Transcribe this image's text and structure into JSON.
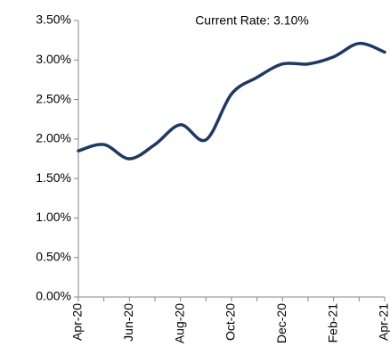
{
  "chart_data": {
    "type": "line",
    "annotation": "Current Rate: 3.10%",
    "categories": [
      "Apr-20",
      null,
      "Jun-20",
      null,
      "Aug-20",
      null,
      "Oct-20",
      null,
      "Dec-20",
      null,
      "Feb-21",
      null,
      "Apr-21"
    ],
    "series": [
      {
        "color": "#1f3864",
        "values": [
          1.85,
          1.93,
          1.75,
          1.93,
          2.18,
          1.99,
          2.57,
          2.78,
          2.95,
          2.95,
          3.04,
          3.21,
          3.1
        ]
      }
    ],
    "ylim": [
      0,
      3.5
    ],
    "yticks": [
      {
        "value": 0,
        "label": "0.00%"
      },
      {
        "value": 0.5,
        "label": "0.50%"
      },
      {
        "value": 1,
        "label": "1.00%"
      },
      {
        "value": 1.5,
        "label": "1.50%"
      },
      {
        "value": 2,
        "label": "2.00%"
      },
      {
        "value": 2.5,
        "label": "2.50%"
      },
      {
        "value": 3,
        "label": "3.00%"
      },
      {
        "value": 3.5,
        "label": "3.50%"
      }
    ],
    "grid": false
  }
}
